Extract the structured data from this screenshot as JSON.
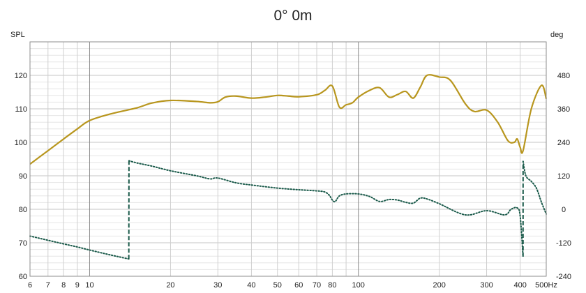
{
  "chart_data": {
    "type": "line",
    "title": "0° 0m",
    "ylabel_left": "SPL",
    "ylabel_right": "deg",
    "xscale": "log",
    "xlim": [
      6,
      500
    ],
    "ylim_left": [
      60,
      130
    ],
    "ylim_right": [
      -240,
      600
    ],
    "grid": true,
    "x_ticks": [
      {
        "value": 6,
        "label": "6"
      },
      {
        "value": 7,
        "label": "7"
      },
      {
        "value": 8,
        "label": "8"
      },
      {
        "value": 9,
        "label": "9"
      },
      {
        "value": 10,
        "label": "10"
      },
      {
        "value": 20,
        "label": "20"
      },
      {
        "value": 30,
        "label": "30"
      },
      {
        "value": 40,
        "label": "40"
      },
      {
        "value": 50,
        "label": "50"
      },
      {
        "value": 60,
        "label": "60"
      },
      {
        "value": 70,
        "label": "70"
      },
      {
        "value": 80,
        "label": "80"
      },
      {
        "value": 100,
        "label": "100"
      },
      {
        "value": 200,
        "label": "200"
      },
      {
        "value": 300,
        "label": "300"
      },
      {
        "value": 400,
        "label": "400"
      },
      {
        "value": 500,
        "label": "500Hz"
      }
    ],
    "y_ticks_left": [
      60,
      70,
      80,
      90,
      100,
      110,
      120
    ],
    "y_ticks_right": [
      -240,
      -120,
      0,
      120,
      240,
      360,
      480
    ],
    "series": [
      {
        "axis": "left",
        "style": "solid",
        "color": "#b8961e",
        "x": [
          6,
          7,
          8,
          9,
          10,
          12,
          15,
          17,
          20,
          25,
          28,
          30,
          32,
          35,
          40,
          45,
          50,
          55,
          60,
          70,
          75,
          80,
          85,
          90,
          95,
          100,
          110,
          120,
          130,
          140,
          150,
          160,
          170,
          180,
          200,
          220,
          250,
          270,
          300,
          330,
          360,
          380,
          390,
          400,
          410,
          440,
          480,
          500
        ],
        "y": [
          93.5,
          97.5,
          101,
          104,
          106.5,
          108.5,
          110.3,
          111.7,
          112.5,
          112.2,
          111.8,
          112.1,
          113.5,
          113.8,
          113.2,
          113.5,
          114,
          113.8,
          113.6,
          114.2,
          115.5,
          116.8,
          110.5,
          111.2,
          111.8,
          113.5,
          115.5,
          116.3,
          113.5,
          114.3,
          115.2,
          113.2,
          116.5,
          120,
          119.5,
          118.5,
          111.5,
          109.2,
          109.6,
          106,
          100.5,
          100,
          101,
          98.5,
          97.5,
          110,
          117,
          113
        ]
      },
      {
        "axis": "right",
        "style": "dotted",
        "color": "#1a5a4a",
        "x": [
          6,
          7,
          8,
          9,
          10,
          12,
          13.99,
          14.01,
          15,
          17,
          20,
          25,
          28,
          30,
          35,
          40,
          50,
          60,
          70,
          75,
          78,
          80,
          82,
          85,
          90,
          100,
          110,
          120,
          130,
          140,
          150,
          160,
          170,
          180,
          200,
          250,
          300,
          350,
          370,
          390,
          400,
          409.9,
          410.1,
          420,
          440,
          460,
          480,
          500
        ],
        "y": [
          -96,
          -111,
          -124,
          -135,
          -146,
          -164,
          -178,
          174,
          166,
          155,
          138,
          120,
          109,
          112,
          95,
          87,
          76,
          70,
          66,
          62,
          50,
          33,
          28,
          48,
          55,
          55,
          46,
          28,
          35,
          33,
          25,
          22,
          40,
          37,
          20,
          -20,
          -5,
          -20,
          0,
          5,
          -25,
          -170,
          172,
          120,
          100,
          75,
          25,
          -17
        ]
      }
    ]
  }
}
